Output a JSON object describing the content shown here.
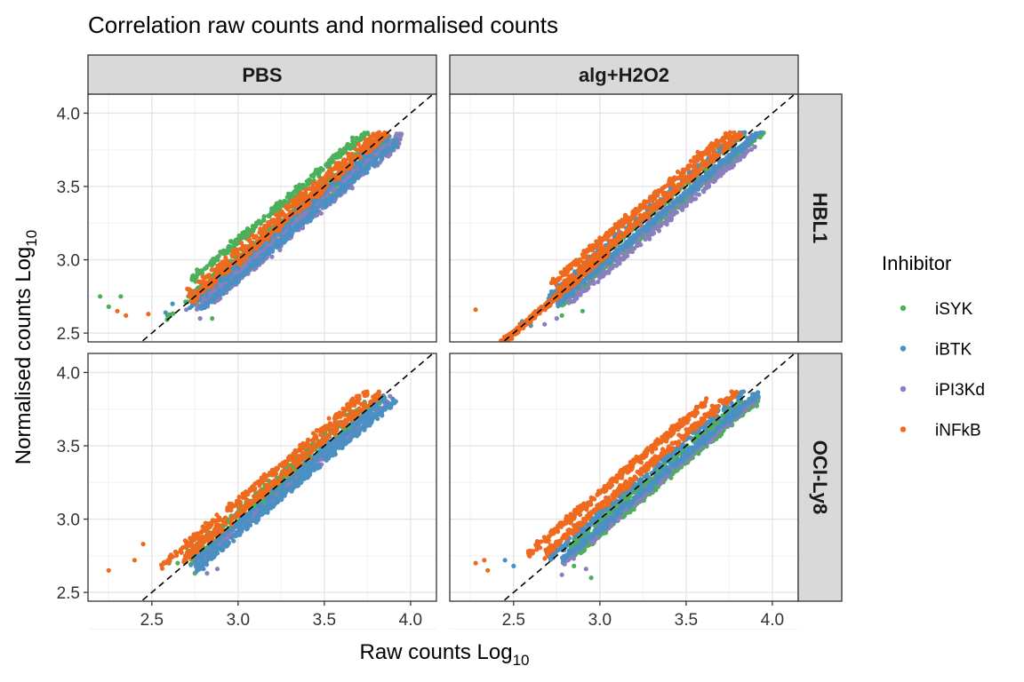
{
  "chart_data": {
    "type": "scatter",
    "title": "Correlation raw counts and normalised counts",
    "xlabel": "Raw counts Log",
    "xlabel_sub": "10",
    "ylabel": "Normalised counts Log",
    "ylabel_sub": "10",
    "xlim": [
      2.13,
      4.15
    ],
    "ylim": [
      2.44,
      4.13
    ],
    "x_ticks": [
      "2.5",
      "3.0",
      "3.5",
      "4.0"
    ],
    "y_ticks": [
      "2.5",
      "3.0",
      "3.5",
      "4.0"
    ],
    "x_tick_values": [
      2.5,
      3.0,
      3.5,
      4.0
    ],
    "y_tick_values": [
      2.5,
      3.0,
      3.5,
      4.0
    ],
    "reference_line": "y = x (dashed)",
    "column_facets": [
      "PBS",
      "alg+H2O2"
    ],
    "row_facets": [
      "HBL1",
      "OCI-Ly8"
    ],
    "legend": {
      "title": "Inhibitor",
      "position": "right",
      "entries": [
        "iSYK",
        "iBTK",
        "iPI3Kd",
        "iNFkB"
      ]
    },
    "colors": {
      "iSYK": "#4daf5a",
      "iBTK": "#4a90c2",
      "iPI3Kd": "#8a7fbf",
      "iNFkB": "#ee6a1f"
    },
    "grid": true,
    "series": [
      {
        "name": "iSYK",
        "color": "#4daf5a",
        "panels": {
          "PBS|HBL1": {
            "bands": [
              [
                0.3,
                0.13,
                2.72,
                3.82,
                0.035
              ],
              [
                0.2,
                0.02,
                2.58,
                3.82,
                0.03
              ],
              [
                0.3,
                -0.04,
                2.75,
                3.85,
                0.03
              ],
              [
                0.2,
                -0.1,
                2.8,
                3.95,
                0.025
              ]
            ],
            "extra": [
              [
                2.2,
                2.75
              ],
              [
                2.25,
                2.68
              ],
              [
                2.32,
                2.75
              ],
              [
                2.85,
                2.6
              ]
            ]
          },
          "alg+H2O2|HBL1": {
            "bands": [
              [
                0.25,
                0.02,
                2.72,
                3.92,
                0.03
              ],
              [
                0.35,
                -0.08,
                2.78,
                3.98,
                0.025
              ]
            ],
            "extra": [
              [
                2.9,
                2.65
              ],
              [
                2.78,
                2.62
              ]
            ]
          },
          "PBS|OCI-Ly8": {
            "bands": [
              [
                0.25,
                0.05,
                2.68,
                3.75,
                0.03
              ],
              [
                0.35,
                -0.02,
                2.72,
                3.85,
                0.025
              ]
            ],
            "extra": [
              [
                2.65,
                2.7
              ],
              [
                2.75,
                2.63
              ]
            ]
          },
          "alg+H2O2|OCI-Ly8": {
            "bands": [
              [
                0.3,
                -0.02,
                2.82,
                3.82,
                0.03
              ],
              [
                0.35,
                -0.1,
                2.85,
                3.92,
                0.025
              ]
            ],
            "extra": [
              [
                2.95,
                2.6
              ],
              [
                2.85,
                2.68
              ]
            ]
          }
        }
      },
      {
        "name": "iBTK",
        "color": "#4a90c2",
        "panels": {
          "PBS|HBL1": {
            "bands": [
              [
                0.3,
                -0.03,
                2.72,
                3.88,
                0.03
              ],
              [
                0.35,
                -0.12,
                2.78,
                3.92,
                0.025
              ]
            ],
            "extra": [
              [
                2.62,
                2.7
              ],
              [
                2.58,
                2.64
              ]
            ]
          },
          "alg+H2O2|HBL1": {
            "bands": [
              [
                0.25,
                0.05,
                2.7,
                3.9,
                0.03
              ],
              [
                0.35,
                -0.05,
                2.75,
                3.95,
                0.025
              ]
            ],
            "extra": [
              [
                2.55,
                2.58
              ],
              [
                2.6,
                2.55
              ]
            ]
          },
          "PBS|OCI-Ly8": {
            "bands": [
              [
                0.35,
                -0.1,
                2.75,
                3.92,
                0.025
              ],
              [
                0.25,
                -0.03,
                2.72,
                3.85,
                0.03
              ]
            ],
            "extra": [
              [
                2.6,
                2.7
              ],
              [
                2.8,
                2.66
              ]
            ]
          },
          "alg+H2O2|OCI-Ly8": {
            "bands": [
              [
                0.25,
                0.03,
                2.7,
                3.85,
                0.035
              ],
              [
                0.35,
                -0.06,
                2.78,
                3.92,
                0.025
              ]
            ],
            "extra": [
              [
                2.5,
                2.68
              ],
              [
                2.45,
                2.72
              ]
            ]
          }
        }
      },
      {
        "name": "iPI3Kd",
        "color": "#8a7fbf",
        "panels": {
          "PBS|HBL1": {
            "bands": [
              [
                0.35,
                -0.08,
                2.75,
                3.95,
                0.03
              ],
              [
                0.2,
                -0.14,
                2.82,
                3.95,
                0.025
              ]
            ],
            "extra": [
              [
                2.7,
                2.66
              ],
              [
                2.78,
                2.6
              ]
            ]
          },
          "alg+H2O2|HBL1": {
            "bands": [
              [
                0.35,
                -0.05,
                2.75,
                3.88,
                0.03
              ],
              [
                0.2,
                -0.12,
                2.82,
                3.9,
                0.02
              ]
            ],
            "extra": [
              [
                2.75,
                2.6
              ],
              [
                2.68,
                2.56
              ]
            ]
          },
          "PBS|OCI-Ly8": {
            "bands": [
              [
                0.35,
                -0.07,
                2.75,
                3.9,
                0.03
              ]
            ],
            "extra": [
              [
                2.82,
                2.63
              ],
              [
                2.88,
                2.66
              ]
            ]
          },
          "alg+H2O2|OCI-Ly8": {
            "bands": [
              [
                0.35,
                -0.08,
                2.78,
                3.92,
                0.03
              ]
            ],
            "extra": [
              [
                2.78,
                2.62
              ],
              [
                2.92,
                2.66
              ]
            ]
          }
        }
      },
      {
        "name": "iNFkB",
        "color": "#ee6a1f",
        "panels": {
          "PBS|HBL1": {
            "bands": [
              [
                0.25,
                0.06,
                2.7,
                3.85,
                0.03
              ],
              [
                0.3,
                0.0,
                2.72,
                3.88,
                0.03
              ]
            ],
            "extra": [
              [
                2.3,
                2.65
              ],
              [
                2.35,
                2.62
              ],
              [
                2.48,
                2.63
              ]
            ]
          },
          "alg+H2O2|HBL1": {
            "bands": [
              [
                0.6,
                0.0,
                2.3,
                3.05,
                0.02
              ],
              [
                0.35,
                0.12,
                2.72,
                3.82,
                0.03
              ],
              [
                0.35,
                0.04,
                2.75,
                3.85,
                0.03
              ]
            ],
            "extra": [
              [
                2.28,
                2.66
              ]
            ]
          },
          "PBS|OCI-Ly8": {
            "bands": [
              [
                0.3,
                0.12,
                2.55,
                3.75,
                0.03
              ],
              [
                0.3,
                0.04,
                2.68,
                3.85,
                0.035
              ]
            ],
            "extra": [
              [
                2.25,
                2.65
              ],
              [
                2.4,
                2.72
              ],
              [
                2.45,
                2.83
              ]
            ]
          },
          "alg+H2O2|OCI-Ly8": {
            "bands": [
              [
                0.4,
                0.18,
                2.58,
                3.62,
                0.03
              ],
              [
                0.35,
                0.08,
                2.68,
                3.8,
                0.03
              ]
            ],
            "extra": [
              [
                2.33,
                2.72
              ],
              [
                2.35,
                2.65
              ],
              [
                2.28,
                2.7
              ]
            ]
          }
        }
      }
    ]
  }
}
